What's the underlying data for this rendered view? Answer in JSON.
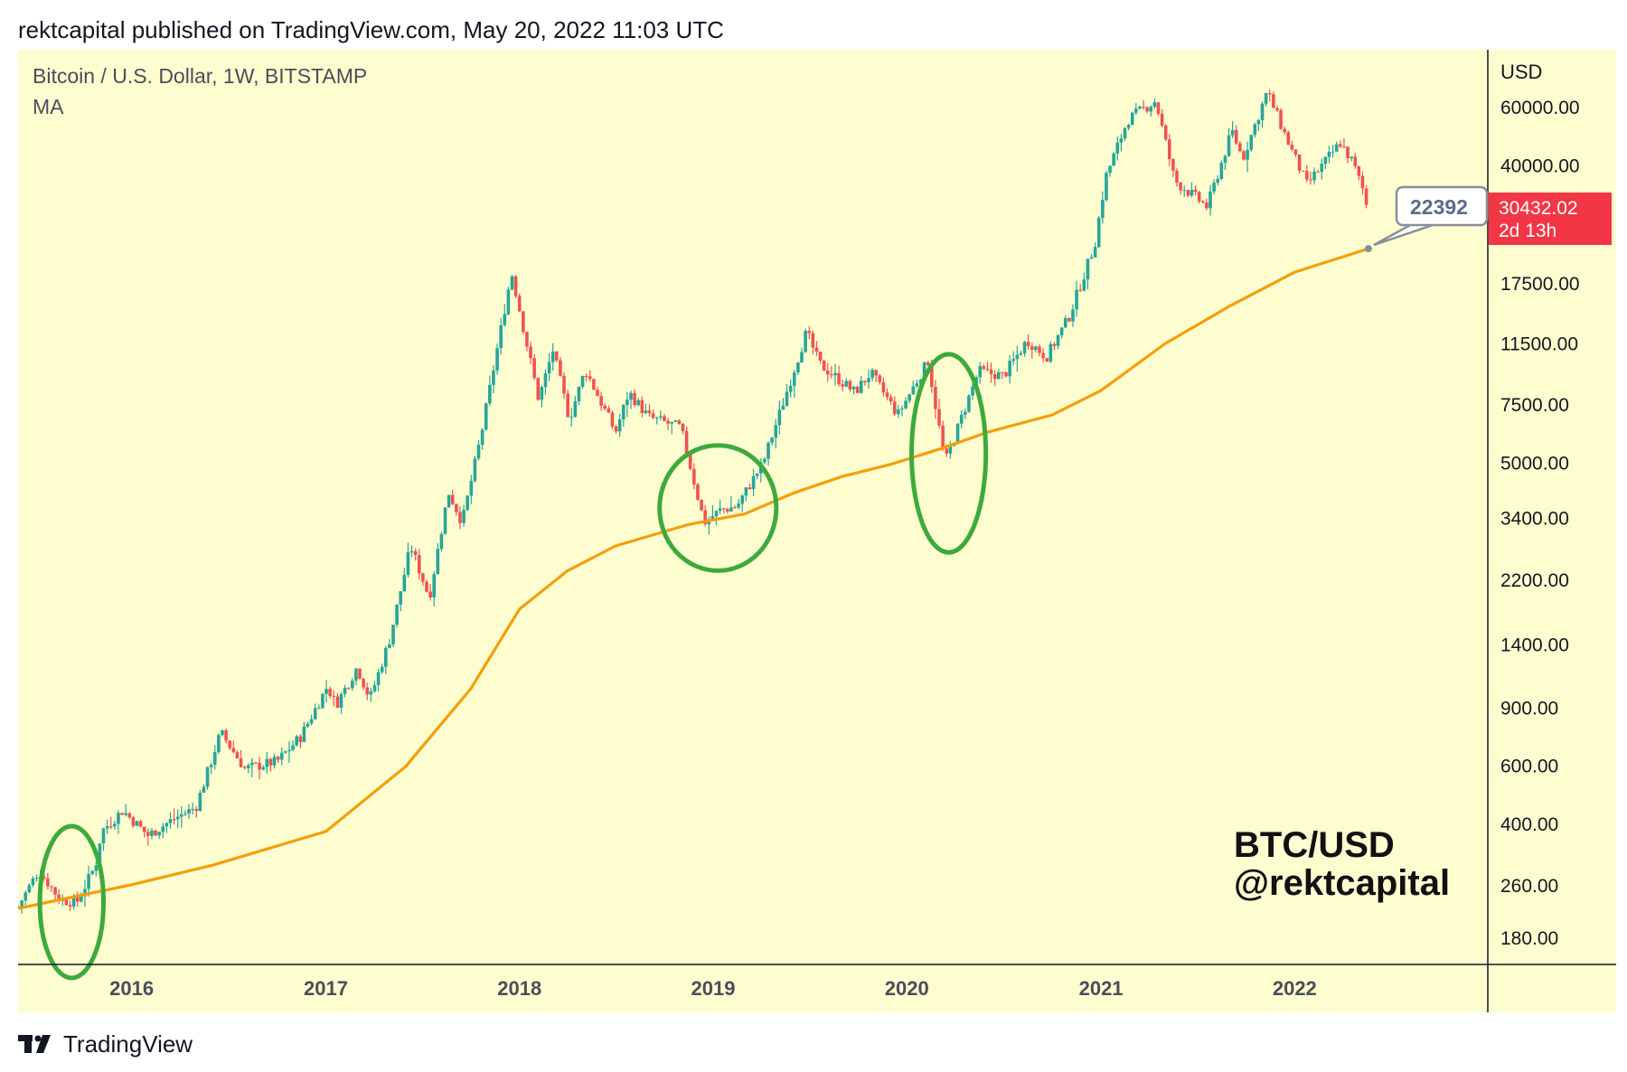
{
  "header": {
    "published": "rektcapital published on TradingView.com, May 20, 2022 11:03 UTC"
  },
  "legend": {
    "symbol": "Bitcoin / U.S. Dollar, 1W, BITSTAMP",
    "indicator": "MA"
  },
  "watermark": {
    "line1": "BTC/USD",
    "line2": "@rektcapital"
  },
  "price_scale": {
    "currency": "USD"
  },
  "last_price": {
    "value": "30432.02",
    "countdown": "2d 13h",
    "color": "#f23645"
  },
  "ma_callout": {
    "value": "22392"
  },
  "footer": {
    "brand": "TradingView"
  },
  "colors": {
    "background": "#fefdd0",
    "up": "#26a69a",
    "down": "#ef5350",
    "ma": "#f59e0b",
    "annotation": "#3daa3d"
  },
  "chart_data": {
    "type": "candlestick",
    "title": "Bitcoin / U.S. Dollar, 1W, BITSTAMP",
    "y_scale": "log",
    "ylim": [
      150,
      90000
    ],
    "xlim": [
      "2015-06-01",
      "2022-12-31"
    ],
    "y_ticks": [
      "60000.00",
      "40000.00",
      "17500.00",
      "11500.00",
      "7500.00",
      "5000.00",
      "3400.00",
      "2200.00",
      "1400.00",
      "900.00",
      "600.00",
      "400.00",
      "260.00",
      "180.00"
    ],
    "x_ticks": [
      {
        "label": "2016",
        "date": "2016-01-01"
      },
      {
        "label": "2017",
        "date": "2017-01-01"
      },
      {
        "label": "2018",
        "date": "2018-01-01"
      },
      {
        "label": "2019",
        "date": "2019-01-01"
      },
      {
        "label": "2020",
        "date": "2020-01-01"
      },
      {
        "label": "2021",
        "date": "2021-01-01"
      },
      {
        "label": "2022",
        "date": "2022-01-01"
      }
    ],
    "price_path": [
      [
        "2015-06-01",
        225
      ],
      [
        "2015-07-10",
        290
      ],
      [
        "2015-08-20",
        235
      ],
      [
        "2015-09-20",
        232
      ],
      [
        "2015-10-25",
        300
      ],
      [
        "2015-11-05",
        380
      ],
      [
        "2015-12-15",
        440
      ],
      [
        "2016-02-01",
        370
      ],
      [
        "2016-03-20",
        415
      ],
      [
        "2016-05-01",
        450
      ],
      [
        "2016-06-17",
        760
      ],
      [
        "2016-08-01",
        590
      ],
      [
        "2016-10-01",
        620
      ],
      [
        "2016-11-15",
        740
      ],
      [
        "2017-01-04",
        1050
      ],
      [
        "2017-01-20",
        920
      ],
      [
        "2017-03-01",
        1200
      ],
      [
        "2017-03-25",
        960
      ],
      [
        "2017-05-01",
        1450
      ],
      [
        "2017-06-10",
        2800
      ],
      [
        "2017-07-15",
        1950
      ],
      [
        "2017-08-20",
        4100
      ],
      [
        "2017-09-15",
        3300
      ],
      [
        "2017-10-20",
        6000
      ],
      [
        "2017-12-17",
        19000
      ],
      [
        "2018-02-06",
        7800
      ],
      [
        "2018-03-05",
        11000
      ],
      [
        "2018-04-05",
        6800
      ],
      [
        "2018-05-05",
        9600
      ],
      [
        "2018-07-01",
        6200
      ],
      [
        "2018-07-26",
        8200
      ],
      [
        "2018-09-01",
        6900
      ],
      [
        "2018-11-01",
        6400
      ],
      [
        "2018-12-15",
        3300
      ],
      [
        "2019-01-15",
        3600
      ],
      [
        "2019-02-15",
        3700
      ],
      [
        "2019-04-05",
        5000
      ],
      [
        "2019-05-15",
        7800
      ],
      [
        "2019-06-26",
        12500
      ],
      [
        "2019-07-20",
        10000
      ],
      [
        "2019-09-25",
        8200
      ],
      [
        "2019-10-25",
        9400
      ],
      [
        "2019-12-15",
        7000
      ],
      [
        "2020-02-10",
        10200
      ],
      [
        "2020-03-13",
        5000
      ],
      [
        "2020-04-15",
        7000
      ],
      [
        "2020-05-15",
        9500
      ],
      [
        "2020-07-01",
        9200
      ],
      [
        "2020-08-15",
        11800
      ],
      [
        "2020-09-20",
        10500
      ],
      [
        "2020-11-01",
        13800
      ],
      [
        "2020-12-20",
        23000
      ],
      [
        "2021-01-10",
        37000
      ],
      [
        "2021-02-20",
        55000
      ],
      [
        "2021-04-14",
        63000
      ],
      [
        "2021-05-20",
        36000
      ],
      [
        "2021-07-20",
        30000
      ],
      [
        "2021-09-05",
        51000
      ],
      [
        "2021-09-25",
        42000
      ],
      [
        "2021-11-10",
        67000
      ],
      [
        "2021-12-20",
        47000
      ],
      [
        "2022-01-24",
        35000
      ],
      [
        "2022-03-28",
        47000
      ],
      [
        "2022-04-20",
        41000
      ],
      [
        "2022-05-20",
        30432
      ]
    ],
    "ma_series": [
      [
        "2015-06-01",
        222
      ],
      [
        "2016-01-01",
        262
      ],
      [
        "2016-06-01",
        300
      ],
      [
        "2017-01-01",
        380
      ],
      [
        "2017-06-01",
        600
      ],
      [
        "2017-10-01",
        1030
      ],
      [
        "2018-01-01",
        1800
      ],
      [
        "2018-04-01",
        2350
      ],
      [
        "2018-07-01",
        2800
      ],
      [
        "2018-11-15",
        3250
      ],
      [
        "2019-03-01",
        3500
      ],
      [
        "2019-06-01",
        4050
      ],
      [
        "2019-09-01",
        4550
      ],
      [
        "2019-12-01",
        4950
      ],
      [
        "2020-03-01",
        5500
      ],
      [
        "2020-06-01",
        6200
      ],
      [
        "2020-10-01",
        7000
      ],
      [
        "2021-01-01",
        8300
      ],
      [
        "2021-05-01",
        11500
      ],
      [
        "2021-09-01",
        15000
      ],
      [
        "2022-01-01",
        19000
      ],
      [
        "2022-05-20",
        22392
      ]
    ],
    "annotations": [
      {
        "type": "ellipse",
        "date": "2015-09-10",
        "price": 232,
        "date_span_days": 120,
        "price_ratio": 1.7
      },
      {
        "type": "ellipse",
        "date": "2019-01-10",
        "price": 3650,
        "date_span_days": 220,
        "price_ratio": 1.55
      },
      {
        "type": "ellipse",
        "date": "2020-03-20",
        "price": 5350,
        "date_span_days": 140,
        "price_ratio": 2.0
      }
    ]
  }
}
